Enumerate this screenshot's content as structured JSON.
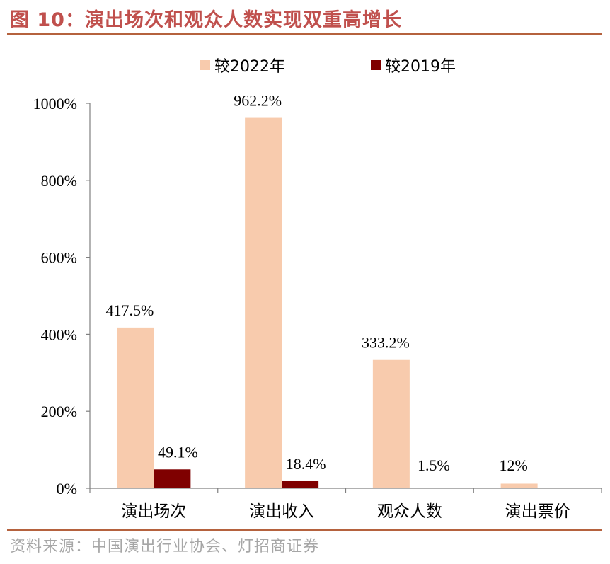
{
  "figure": {
    "title": "图 10：演出场次和观众人数实现双重高增长",
    "source": "资料来源：中国演出行业协会、灯招商证券"
  },
  "colors": {
    "title": "#c0504d",
    "rule": "#b5623e",
    "series_2022": "#f8cbad",
    "series_2019": "#7f0000",
    "source_text": "#a6a6a6"
  },
  "chart_data": {
    "type": "bar",
    "categories": [
      "演出场次",
      "演出收入",
      "观众人数",
      "演出票价"
    ],
    "series": [
      {
        "name": "较2022年",
        "values": [
          417.5,
          962.2,
          333.2,
          12
        ],
        "labels": [
          "417.5%",
          "962.2%",
          "333.2%",
          "12%"
        ]
      },
      {
        "name": "较2019年",
        "values": [
          49.1,
          18.4,
          1.5,
          null
        ],
        "labels": [
          "49.1%",
          "18.4%",
          "1.5%",
          ""
        ]
      }
    ],
    "ylim": [
      0,
      1000
    ],
    "yticks": [
      0,
      200,
      400,
      600,
      800,
      1000
    ],
    "ytick_labels": [
      "0%",
      "200%",
      "400%",
      "600%",
      "800%",
      "1000%"
    ],
    "legend_position": "top",
    "grid": false,
    "title": "",
    "xlabel": "",
    "ylabel": ""
  }
}
